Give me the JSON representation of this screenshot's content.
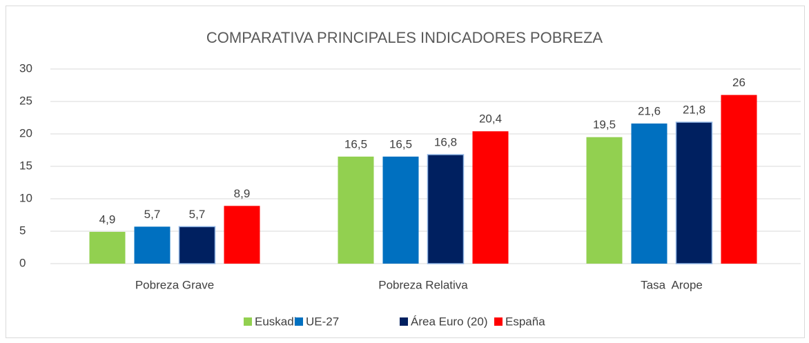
{
  "chart_data": {
    "type": "bar",
    "title": "COMPARATIVA PRINCIPALES INDICADORES POBREZA",
    "categories": [
      "Pobreza Grave",
      "Pobreza Relativa",
      "Tasa  Arope"
    ],
    "series": [
      {
        "name": "Euskadi",
        "color": "#92d050",
        "values": [
          4.9,
          16.5,
          19.5
        ],
        "value_labels": [
          "4,9",
          "16,5",
          "19,5"
        ]
      },
      {
        "name": "UE-27",
        "color": "#0070c0",
        "values": [
          5.7,
          16.5,
          21.6
        ],
        "value_labels": [
          "5,7",
          "16,5",
          "21,6"
        ]
      },
      {
        "name": "Área Euro (20)",
        "color": "#002060",
        "values": [
          5.7,
          16.8,
          21.8
        ],
        "value_labels": [
          "5,7",
          "16,8",
          "21,8"
        ]
      },
      {
        "name": "España",
        "color": "#ff0000",
        "values": [
          8.9,
          20.4,
          26
        ],
        "value_labels": [
          "8,9",
          "20,4",
          "26"
        ]
      }
    ],
    "ylim": [
      0,
      30
    ],
    "yticks": [
      0,
      5,
      10,
      15,
      20,
      25,
      30
    ],
    "grid": true,
    "legend": "bottom"
  }
}
